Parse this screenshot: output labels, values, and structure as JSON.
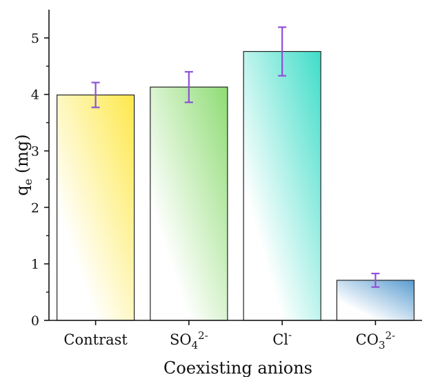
{
  "chart_data": {
    "type": "bar",
    "categories": [
      {
        "label": "Contrast",
        "sub": "",
        "sup": ""
      },
      {
        "label": "SO",
        "sub": "4",
        "sup": "2-"
      },
      {
        "label": "Cl",
        "sub": "",
        "sup": "-"
      },
      {
        "label": "CO",
        "sub": "3",
        "sup": "2-"
      }
    ],
    "values": [
      3.99,
      4.13,
      4.76,
      0.71
    ],
    "errors": [
      0.22,
      0.27,
      0.43,
      0.12
    ],
    "xlabel": "Coexisting anions",
    "ylabel": {
      "main": "q",
      "sub": "e",
      "rest": " (mg)"
    },
    "ylim": [
      0,
      5.5
    ],
    "yticks": [
      "0",
      "1",
      "2",
      "3",
      "4",
      "5"
    ],
    "bar_colors": [
      "#fde84a",
      "#8fdc75",
      "#3fddc8",
      "#5a9cd0"
    ],
    "error_color": "#8f4fd8",
    "grid": false
  }
}
